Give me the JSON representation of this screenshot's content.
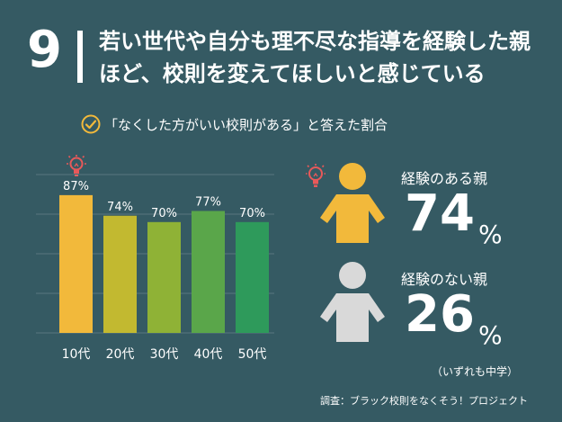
{
  "header": {
    "number": "9",
    "title": "若い世代や自分も理不尽な指導を経験した親ほど、校則を変えてほしいと感じている"
  },
  "subtitle": "「なくした方がいい校則がある」と答えた割合",
  "comparison": {
    "with": {
      "label": "経験のある親",
      "value": "74",
      "unit": "%"
    },
    "without": {
      "label": "経験のない親",
      "value": "26",
      "unit": "%"
    }
  },
  "note": "（いずれも中学）",
  "source": "調査：ブラック校則をなくそう！プロジェクト",
  "colors": {
    "background": "#355a63",
    "bars": [
      "#f2b93b",
      "#c2b930",
      "#8fb236",
      "#5aa64a",
      "#2e9a5b"
    ],
    "person_yellow": "#f2b93b",
    "person_gray": "#d9d9d9",
    "icon_red": "#e8595a",
    "check_yellow": "#f2b93b"
  },
  "chart_data": {
    "type": "bar",
    "title": "「なくした方がいい校則がある」と答えた割合",
    "categories": [
      "10代",
      "20代",
      "30代",
      "40代",
      "50代"
    ],
    "values": [
      87,
      74,
      70,
      77,
      70
    ],
    "value_labels": [
      "87%",
      "74%",
      "70%",
      "77%",
      "70%"
    ],
    "ylim": [
      0,
      100
    ],
    "grid": true,
    "xlabel": "",
    "ylabel": ""
  }
}
